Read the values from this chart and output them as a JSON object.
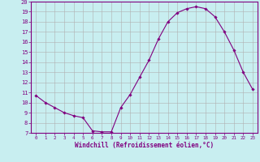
{
  "hours": [
    0,
    1,
    2,
    3,
    4,
    5,
    6,
    7,
    8,
    9,
    10,
    11,
    12,
    13,
    14,
    15,
    16,
    17,
    18,
    19,
    20,
    21,
    22,
    23
  ],
  "windchill": [
    10.7,
    10.0,
    9.5,
    9.0,
    8.7,
    8.5,
    7.2,
    7.1,
    7.1,
    9.5,
    10.8,
    12.5,
    14.2,
    16.3,
    18.0,
    18.9,
    19.3,
    19.5,
    19.3,
    18.5,
    17.0,
    15.2,
    13.0,
    11.3
  ],
  "line_color": "#800080",
  "marker_color": "#800080",
  "bg_color": "#c8eef0",
  "grid_color": "#b0b0b0",
  "axis_color": "#800080",
  "xlabel": "Windchill (Refroidissement éolien,°C)",
  "ylim": [
    7,
    20
  ],
  "xlim": [
    -0.5,
    23.5
  ],
  "yticks": [
    7,
    8,
    9,
    10,
    11,
    12,
    13,
    14,
    15,
    16,
    17,
    18,
    19,
    20
  ],
  "xticks": [
    0,
    1,
    2,
    3,
    4,
    5,
    6,
    7,
    8,
    9,
    10,
    11,
    12,
    13,
    14,
    15,
    16,
    17,
    18,
    19,
    20,
    21,
    22,
    23
  ]
}
